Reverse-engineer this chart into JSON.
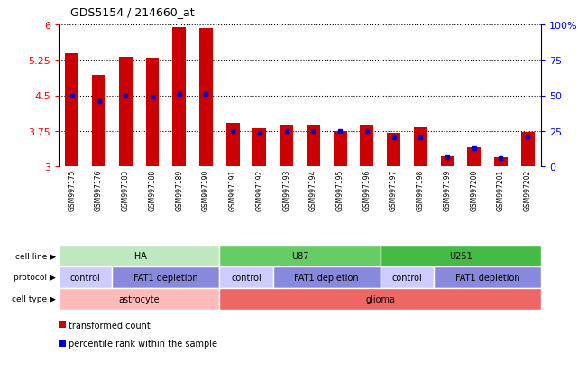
{
  "title": "GDS5154 / 214660_at",
  "samples": [
    "GSM997175",
    "GSM997176",
    "GSM997183",
    "GSM997188",
    "GSM997189",
    "GSM997190",
    "GSM997191",
    "GSM997192",
    "GSM997193",
    "GSM997194",
    "GSM997195",
    "GSM997196",
    "GSM997197",
    "GSM997198",
    "GSM997199",
    "GSM997200",
    "GSM997201",
    "GSM997202"
  ],
  "bar_values": [
    5.38,
    4.93,
    5.32,
    5.3,
    5.95,
    5.92,
    3.92,
    3.8,
    3.88,
    3.88,
    3.75,
    3.88,
    3.7,
    3.82,
    3.21,
    3.4,
    3.2,
    3.72
  ],
  "percentile_values": [
    4.5,
    4.38,
    4.49,
    4.47,
    4.52,
    4.52,
    3.75,
    3.7,
    3.75,
    3.75,
    3.75,
    3.75,
    3.62,
    3.62,
    3.19,
    3.38,
    3.18,
    3.63
  ],
  "ylim_left": [
    3.0,
    6.0
  ],
  "ylim_right": [
    0,
    100
  ],
  "yticks_left": [
    3.0,
    3.75,
    4.5,
    5.25,
    6.0
  ],
  "ytick_labels_left": [
    "3",
    "3.75",
    "4.5",
    "5.25",
    "6"
  ],
  "yticks_right_pct": [
    0,
    25,
    50,
    75,
    100
  ],
  "ytick_labels_right": [
    "0",
    "25",
    "50",
    "75",
    "100%"
  ],
  "cell_line_groups": [
    {
      "label": "IHA",
      "start": 0,
      "end": 6,
      "color": "#c0e8c0"
    },
    {
      "label": "U87",
      "start": 6,
      "end": 12,
      "color": "#66cc66"
    },
    {
      "label": "U251",
      "start": 12,
      "end": 18,
      "color": "#44bb44"
    }
  ],
  "protocol_groups": [
    {
      "label": "control",
      "start": 0,
      "end": 2,
      "color": "#ccccff"
    },
    {
      "label": "FAT1 depletion",
      "start": 2,
      "end": 6,
      "color": "#8888dd"
    },
    {
      "label": "control",
      "start": 6,
      "end": 8,
      "color": "#ccccff"
    },
    {
      "label": "FAT1 depletion",
      "start": 8,
      "end": 12,
      "color": "#8888dd"
    },
    {
      "label": "control",
      "start": 12,
      "end": 14,
      "color": "#ccccff"
    },
    {
      "label": "FAT1 depletion",
      "start": 14,
      "end": 18,
      "color": "#8888dd"
    }
  ],
  "cell_type_groups": [
    {
      "label": "astrocyte",
      "start": 0,
      "end": 6,
      "color": "#ffbbbb"
    },
    {
      "label": "glioma",
      "start": 6,
      "end": 18,
      "color": "#ee6666"
    }
  ],
  "bar_color": "#cc0000",
  "dot_color": "#0000cc",
  "bar_width": 0.5,
  "tick_area_color": "#c8c8c8",
  "legend_items": [
    "transformed count",
    "percentile rank within the sample"
  ],
  "row_labels": [
    "cell line",
    "protocol",
    "cell type"
  ]
}
